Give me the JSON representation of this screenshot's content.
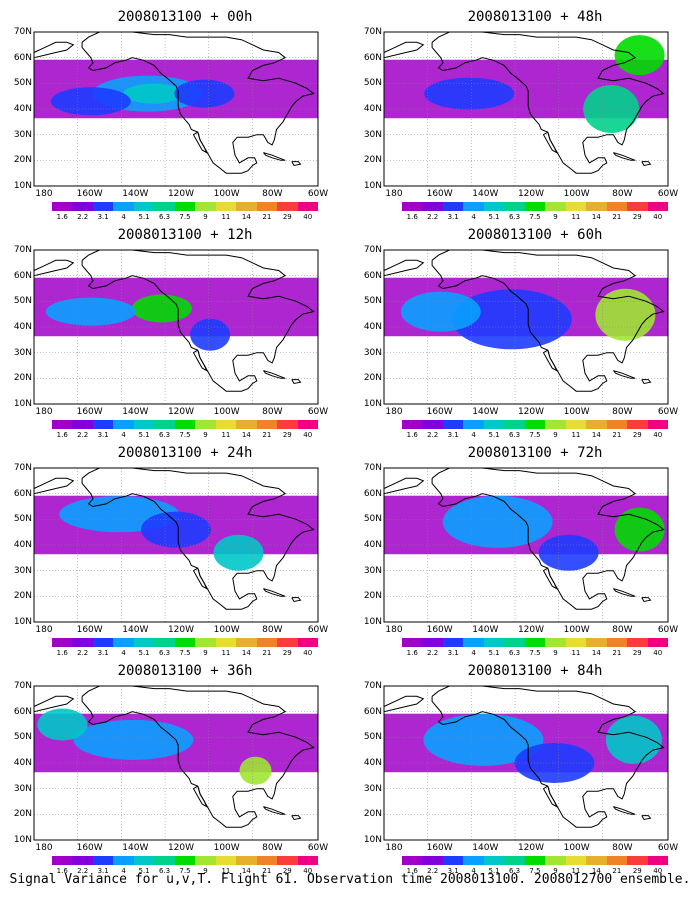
{
  "panels": [
    {
      "title": "2008013100 + 00h",
      "lead": "00h"
    },
    {
      "title": "2008013100 + 48h",
      "lead": "48h"
    },
    {
      "title": "2008013100 + 12h",
      "lead": "12h"
    },
    {
      "title": "2008013100 + 60h",
      "lead": "60h"
    },
    {
      "title": "2008013100 + 24h",
      "lead": "24h"
    },
    {
      "title": "2008013100 + 72h",
      "lead": "72h"
    },
    {
      "title": "2008013100 + 36h",
      "lead": "36h"
    },
    {
      "title": "2008013100 + 84h",
      "lead": "84h"
    }
  ],
  "lat_labels": [
    "70N",
    "60N",
    "50N",
    "40N",
    "30N",
    "20N",
    "10N"
  ],
  "lon_labels": [
    "180",
    "160W",
    "140W",
    "120W",
    "100W",
    "80W",
    "60W"
  ],
  "colorbar": {
    "labels": [
      "1.6",
      "2.2",
      "3.1",
      "4",
      "5.1",
      "6.3",
      "7.5",
      "9",
      "11",
      "14",
      "21",
      "29",
      "40"
    ],
    "colors": [
      "#a000c8",
      "#8200dc",
      "#1e3cff",
      "#0aa0ff",
      "#00c8c8",
      "#00d28c",
      "#00dc00",
      "#a0e632",
      "#e6dc32",
      "#e6af2d",
      "#f08228",
      "#fa3c3c",
      "#f00082"
    ]
  },
  "caption": "Signal Variance for u,v,T. Flight 61. Observation time 2008013100. 2008012700 ensemble."
}
